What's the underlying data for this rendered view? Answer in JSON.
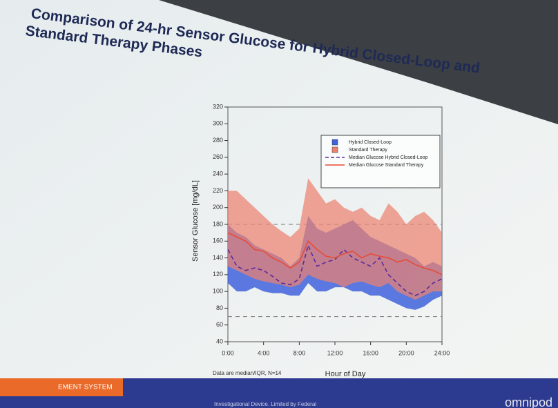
{
  "chart_data": {
    "type": "line",
    "title": "Comparison of 24-hr Sensor Glucose for Hybrid Closed-Loop and Standard Therapy Phases",
    "x_label": "Hour of Day",
    "y_label": "Sensor Glucose [mg/dL]",
    "note": "Data are median/IQR, N=14",
    "x": [
      0,
      1,
      2,
      3,
      4,
      5,
      6,
      7,
      8,
      9,
      10,
      11,
      12,
      13,
      14,
      15,
      16,
      17,
      18,
      19,
      20,
      21,
      22,
      23,
      24
    ],
    "xlim": [
      0,
      24
    ],
    "xticks": [
      {
        "value": 0,
        "label": "0:00"
      },
      {
        "value": 4,
        "label": "4:00"
      },
      {
        "value": 8,
        "label": "8:00"
      },
      {
        "value": 12,
        "label": "12:00"
      },
      {
        "value": 16,
        "label": "16:00"
      },
      {
        "value": 20,
        "label": "20:00"
      },
      {
        "value": 24,
        "label": "24:00"
      }
    ],
    "ylim": [
      40,
      320
    ],
    "yticks": [
      40,
      60,
      80,
      100,
      120,
      140,
      160,
      180,
      200,
      220,
      240,
      260,
      280,
      300,
      320
    ],
    "reference_lines": [
      70,
      180
    ],
    "legend": "upper right",
    "series": [
      {
        "name": "Hybrid Closed-Loop",
        "type": "band",
        "color": "#3f63dc",
        "low": [
          110,
          100,
          100,
          105,
          100,
          98,
          98,
          95,
          95,
          110,
          100,
          100,
          105,
          105,
          100,
          100,
          95,
          95,
          90,
          85,
          80,
          78,
          82,
          90,
          95
        ],
        "high": [
          180,
          170,
          165,
          155,
          150,
          145,
          140,
          130,
          140,
          190,
          175,
          170,
          175,
          180,
          185,
          175,
          165,
          160,
          155,
          150,
          145,
          140,
          130,
          135,
          130
        ]
      },
      {
        "name": "Standard Therapy",
        "type": "band",
        "color": "#ec8270",
        "low": [
          130,
          125,
          120,
          115,
          112,
          110,
          108,
          105,
          108,
          120,
          115,
          112,
          110,
          105,
          110,
          112,
          108,
          105,
          110,
          100,
          95,
          90,
          95,
          100,
          100
        ],
        "high": [
          220,
          220,
          210,
          200,
          190,
          180,
          172,
          165,
          175,
          235,
          220,
          205,
          210,
          200,
          195,
          200,
          190,
          185,
          205,
          195,
          180,
          190,
          195,
          185,
          170
        ]
      },
      {
        "name": "Median Glucose Hybrid Closed-Loop",
        "type": "line",
        "dashed": true,
        "color": "#5a2a9c",
        "values": [
          150,
          130,
          125,
          128,
          125,
          118,
          110,
          108,
          115,
          155,
          130,
          135,
          138,
          150,
          140,
          135,
          130,
          140,
          120,
          110,
          100,
          95,
          100,
          110,
          115
        ]
      },
      {
        "name": "Median Glucose Standard Therapy",
        "type": "line",
        "dashed": false,
        "color": "#e84a36",
        "values": [
          170,
          165,
          160,
          150,
          148,
          140,
          135,
          128,
          135,
          160,
          150,
          142,
          140,
          145,
          148,
          140,
          145,
          142,
          140,
          135,
          138,
          132,
          128,
          125,
          120
        ]
      }
    ]
  },
  "slide": {
    "banner": "EMENT SYSTEM",
    "disclaimer": "Investigational Device. Limited by Federal",
    "logo": "omnipod"
  }
}
